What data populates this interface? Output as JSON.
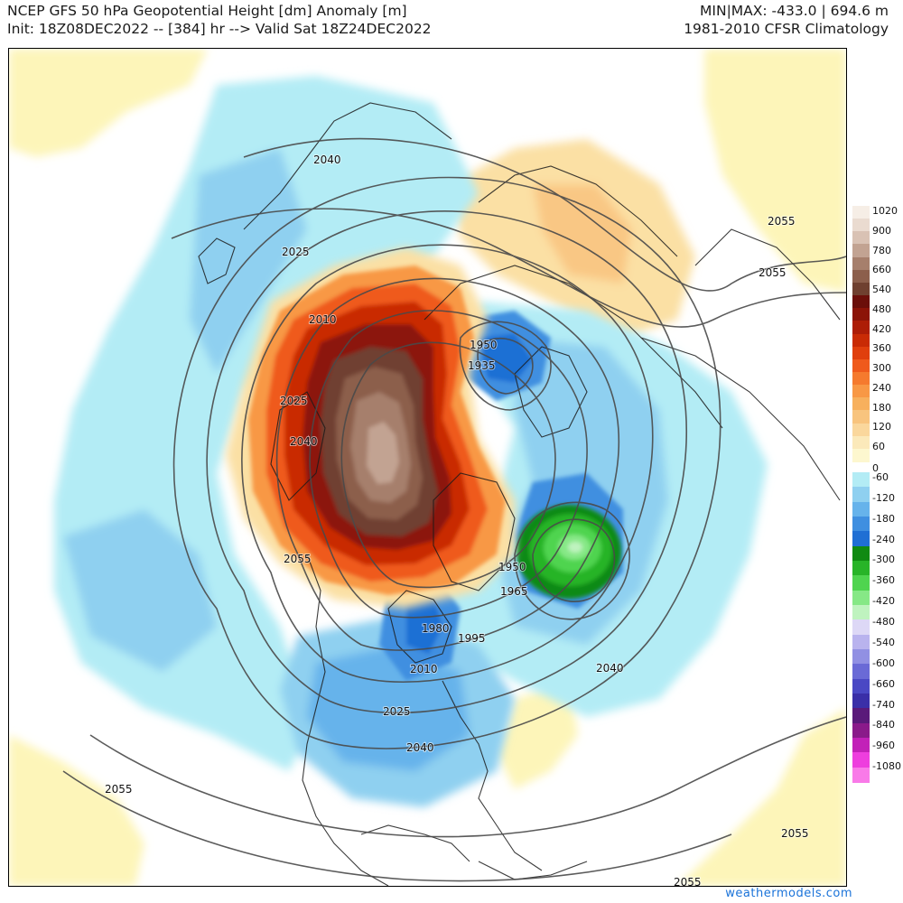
{
  "header": {
    "title_line1": "NCEP GFS 50 hPa Geopotential Height [dm] Anomaly [m]",
    "title_line2": "Init: 18Z08DEC2022 -- [384] hr --> Valid Sat 18Z24DEC2022",
    "minmax": "MIN|MAX: -433.0 | 694.6 m",
    "climatology": "1981-2010 CFSR Climatology"
  },
  "colorbar": {
    "ticks": [
      "1020",
      "900",
      "780",
      "660",
      "540",
      "480",
      "420",
      "360",
      "300",
      "240",
      "180",
      "120",
      "60",
      "0",
      "-60",
      "-120",
      "-180",
      "-240",
      "-300",
      "-360",
      "-420",
      "-480",
      "-540",
      "-600",
      "-660",
      "-740",
      "-840",
      "-960",
      "-1080"
    ],
    "positive_colors": [
      "#f6eee6",
      "#eadbd0",
      "#d9c2b4",
      "#c2a392",
      "#a67f6c",
      "#8c5f4c",
      "#6f4030",
      "#6b0f0a",
      "#8c1408",
      "#ad1d07",
      "#c92b05",
      "#e03f0d",
      "#ef5a1c",
      "#f57a2e",
      "#f89845",
      "#f7b05d",
      "#f8c47e",
      "#fad79c",
      "#fbe9ba",
      "#fdf7cf"
    ],
    "negative_colors": [
      "#b3ecf5",
      "#8fd0f0",
      "#66b3eb",
      "#3f8fe0",
      "#1f6fd4",
      "#108a12",
      "#28b428",
      "#4fd44f",
      "#86e886",
      "#bff3bf",
      "#ddd8f6",
      "#b9b3ee",
      "#9190e3",
      "#6a6ad6",
      "#4a48c4",
      "#3a2fa8",
      "#5a1a7a",
      "#8a1a8a",
      "#c221b8",
      "#ee3ede",
      "#f97ae8"
    ]
  },
  "contour_labels": [
    "2040",
    "2025",
    "2010",
    "2025",
    "2040",
    "2055",
    "1950",
    "1935",
    "1950",
    "1965",
    "1980",
    "1995",
    "2010",
    "2025",
    "2040",
    "2040",
    "2055",
    "2055",
    "2055",
    "2055",
    "2055"
  ],
  "icons": [
    "coastline-outline",
    "contour-line"
  ],
  "credit": "weathermodels.com"
}
